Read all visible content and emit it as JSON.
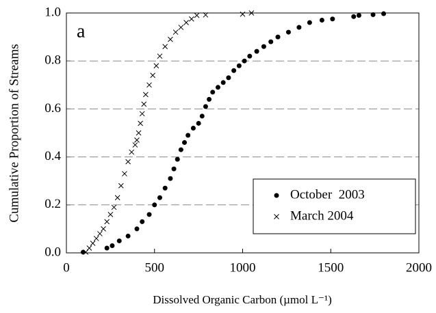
{
  "chart_data": {
    "type": "scatter",
    "xlabel": "Dissolved Organic Carbon (µmol L⁻¹)",
    "ylabel": "Cumulative Proportion of Streams",
    "annotation": "a",
    "xlim": [
      0,
      2000
    ],
    "xticks": [
      0,
      500,
      1000,
      1500,
      2000
    ],
    "ylim": [
      0,
      1
    ],
    "yticks": [
      {
        "value": 0,
        "label": "0.0"
      },
      {
        "value": 0.2,
        "label": "0.2"
      },
      {
        "value": 0.4,
        "label": "0.4"
      },
      {
        "value": 0.6,
        "label": "0.6"
      },
      {
        "value": 0.8,
        "label": "0.8"
      },
      {
        "value": 1,
        "label": "1.0"
      }
    ],
    "grid": true,
    "legend": "lower right",
    "series": [
      {
        "name": "October  2003",
        "color": "#000000",
        "marker": "circle",
        "x": [
          95,
          230,
          260,
          300,
          350,
          400,
          430,
          470,
          500,
          530,
          560,
          590,
          610,
          630,
          650,
          670,
          690,
          720,
          750,
          770,
          790,
          810,
          830,
          860,
          890,
          920,
          950,
          980,
          1010,
          1040,
          1080,
          1120,
          1160,
          1200,
          1260,
          1320,
          1380,
          1450,
          1510,
          1630,
          1660,
          1740,
          1800
        ],
        "values": [
          0.003,
          0.02,
          0.03,
          0.05,
          0.07,
          0.1,
          0.13,
          0.16,
          0.2,
          0.23,
          0.27,
          0.31,
          0.35,
          0.39,
          0.43,
          0.46,
          0.49,
          0.52,
          0.54,
          0.57,
          0.61,
          0.64,
          0.67,
          0.69,
          0.71,
          0.73,
          0.76,
          0.78,
          0.8,
          0.82,
          0.84,
          0.86,
          0.88,
          0.9,
          0.92,
          0.94,
          0.96,
          0.97,
          0.975,
          0.985,
          0.99,
          0.993,
          0.997
        ]
      },
      {
        "name": "March 2004",
        "color": "#000000",
        "marker": "x",
        "x": [
          110,
          130,
          150,
          170,
          190,
          210,
          230,
          250,
          270,
          290,
          310,
          330,
          350,
          370,
          390,
          400,
          410,
          420,
          430,
          440,
          450,
          470,
          490,
          510,
          530,
          560,
          590,
          620,
          650,
          680,
          710,
          740,
          790,
          1000,
          1050
        ],
        "values": [
          0.003,
          0.02,
          0.04,
          0.06,
          0.08,
          0.1,
          0.13,
          0.16,
          0.19,
          0.23,
          0.28,
          0.33,
          0.38,
          0.42,
          0.45,
          0.47,
          0.5,
          0.54,
          0.58,
          0.62,
          0.66,
          0.7,
          0.74,
          0.78,
          0.82,
          0.86,
          0.89,
          0.92,
          0.94,
          0.96,
          0.975,
          0.99,
          0.992,
          0.995,
          1.0
        ]
      }
    ]
  }
}
